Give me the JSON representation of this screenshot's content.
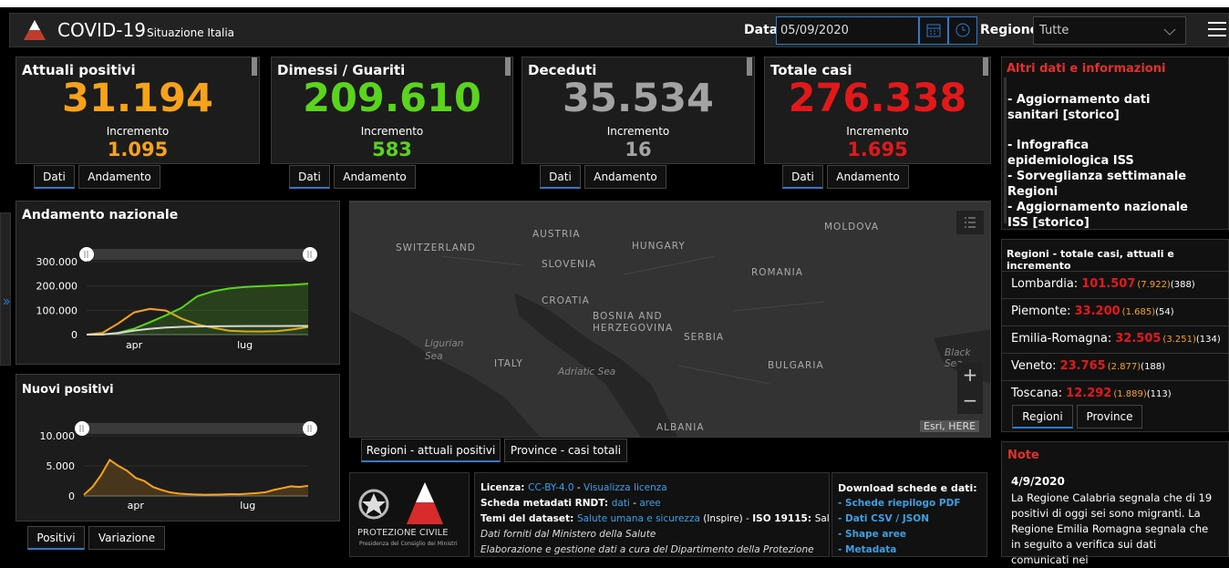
{
  "header": {
    "title": "COVID-19",
    "subtitle": "Situazione Italia",
    "date_label": "Data",
    "date_value": "05/09/2020",
    "region_label": "Regione",
    "region_value": "Tutte"
  },
  "cards": [
    {
      "title": "Attuali positivi",
      "value": "31.194",
      "increment_label": "Incremento",
      "increment": "1.095",
      "color": "#f7a21b",
      "tabs": [
        "Dati",
        "Andamento"
      ]
    },
    {
      "title": "Dimessi / Guariti",
      "value": "209.610",
      "increment_label": "Incremento",
      "increment": "583",
      "color": "#5bd41e",
      "tabs": [
        "Dati",
        "Andamento"
      ]
    },
    {
      "title": "Deceduti",
      "value": "35.534",
      "increment_label": "Incremento",
      "increment": "16",
      "color": "#a3a3a3",
      "tabs": [
        "Dati",
        "Andamento"
      ]
    },
    {
      "title": "Totale casi",
      "value": "276.338",
      "increment_label": "Incremento",
      "increment": "1.695",
      "color": "#e3181b",
      "tabs": [
        "Dati",
        "Andamento"
      ]
    }
  ],
  "links": {
    "title": "Altri dati e informazioni",
    "items": [
      "- Aggiornamento dati sanitari [storico]",
      "- Infografica epidemiologica ISS",
      "- Sorveglianza settimanale Regioni",
      "- Aggiornamento nazionale ISS [storico]"
    ]
  },
  "regions": {
    "title": "Regioni - totale casi, attuali e incremento",
    "rows": [
      {
        "name": "Lombardia:",
        "total": "101.507",
        "current": "(7.922)",
        "increment": "(388)"
      },
      {
        "name": "Piemonte:",
        "total": "33.200",
        "current": "(1.685)",
        "increment": "(54)"
      },
      {
        "name": "Emilia-Romagna:",
        "total": "32.505",
        "current": "(3.251)",
        "increment": "(134)"
      },
      {
        "name": "Veneto:",
        "total": "23.765",
        "current": "(2.877)",
        "increment": "(188)"
      },
      {
        "name": "Toscana:",
        "total": "12.292",
        "current": "(1.889)",
        "increment": "(113)"
      }
    ],
    "tabs": [
      "Regioni",
      "Province"
    ]
  },
  "note": {
    "title": "Note",
    "date": "4/9/2020",
    "text": "La Regione Calabria segnala che di 19 positivi di oggi sei sono migranti. La Regione Emilia Romagna segnala che in seguito a verifica sui dati comunicati nei"
  },
  "map": {
    "labels": [
      "SWITZERLAND",
      "AUSTRIA",
      "HUNGARY",
      "MOLDOVA",
      "SLOVENIA",
      "CROATIA",
      "ROMANIA",
      "BOSNIA AND",
      "HERZEGOVINA",
      "SERBIA",
      "Ligurian",
      "Sea",
      "ITALY",
      "Adriatic Sea",
      "BULGARIA",
      "Black Sea",
      "ALBANIA"
    ],
    "attribution": "Esri, HERE",
    "zoom": [
      "+",
      "−"
    ],
    "tabs": [
      "Regioni - attuali positivi",
      "Province - casi totali"
    ]
  },
  "chart_tabs": [
    "Positivi",
    "Variazione"
  ],
  "footer": {
    "logo": [
      "PROTEZIONE CIVILE",
      "Presidenza del Consiglio dei Ministri"
    ],
    "info": [
      [
        {
          "text": "Licenza: ",
          "kind": "bold"
        },
        {
          "text": "CC-BY-4.0",
          "kind": "link"
        },
        {
          "text": " - ",
          "kind": "plain"
        },
        {
          "text": "Visualizza licenza",
          "kind": "link"
        }
      ],
      [
        {
          "text": "Scheda metadati RNDT: ",
          "kind": "bold"
        },
        {
          "text": "dati",
          "kind": "link"
        },
        {
          "text": " - ",
          "kind": "plain"
        },
        {
          "text": "aree",
          "kind": "link"
        }
      ],
      [
        {
          "text": "Temi del dataset: ",
          "kind": "bold"
        },
        {
          "text": "Salute umana e sicurezza",
          "kind": "link"
        },
        {
          "text": " (Inspire) - ",
          "kind": "plain"
        },
        {
          "text": "ISO 19115: ",
          "kind": "bold"
        },
        {
          "text": "Salute",
          "kind": "plain"
        }
      ],
      [
        {
          "text": "Dati forniti dal Ministero della Salute",
          "kind": "italic"
        }
      ],
      [
        {
          "text": "Elaborazione e gestione dati a cura del Dipartimento della Protezione",
          "kind": "italic"
        }
      ]
    ],
    "download_title": "Download schede e dati:",
    "downloads": [
      "- Schede riepilogo PDF",
      "- Dati CSV / JSON",
      "- Shape aree",
      "- Metadata"
    ]
  },
  "chart_data": [
    {
      "type": "line",
      "title": "Andamento nazionale",
      "categories": [
        null,
        null,
        null,
        "apr",
        null,
        null,
        null,
        null,
        null,
        null,
        "lug",
        null,
        null,
        null,
        null
      ],
      "series": [
        {
          "name": "Attuali positivi",
          "color": "#f7a21b",
          "area": false,
          "values": [
            0,
            7000,
            46000,
            91000,
            106000,
            99000,
            66000,
            42000,
            28000,
            16000,
            13000,
            12500,
            14000,
            21000,
            31194
          ]
        },
        {
          "name": "Dimessi / Guariti",
          "color": "#5bd41e",
          "area": true,
          "values": [
            0,
            600,
            7400,
            24000,
            51000,
            79000,
            110000,
            158000,
            178000,
            190000,
            196000,
            199000,
            202000,
            205000,
            209610
          ]
        },
        {
          "name": "Deceduti",
          "color": "#d8d8d8",
          "area": false,
          "values": [
            0,
            460,
            6000,
            16500,
            24000,
            29000,
            32000,
            33500,
            34400,
            34700,
            34950,
            35100,
            35200,
            35450,
            35534
          ]
        }
      ],
      "ylim": [
        0,
        300000
      ],
      "yticks": [
        0,
        {
          "value": 100000,
          "label": "100.000"
        },
        {
          "value": 200000,
          "label": "200.000"
        },
        {
          "value": 300000,
          "label": "300.000"
        }
      ]
    },
    {
      "type": "area",
      "title": "Nuovi positivi",
      "categories": [
        null,
        null,
        null,
        null,
        null,
        null,
        "apr",
        null,
        null,
        null,
        null,
        null,
        null,
        null,
        null,
        null,
        null,
        null,
        null,
        "lug",
        null,
        null,
        null,
        null,
        null,
        null,
        null
      ],
      "series": [
        {
          "name": "Nuovi positivi",
          "color": "#f7a21b",
          "area": true,
          "values": [
            200,
            1500,
            3500,
            6000,
            5000,
            4200,
            3000,
            2500,
            1500,
            1000,
            600,
            400,
            300,
            250,
            200,
            230,
            250,
            300,
            280,
            380,
            480,
            600,
            1000,
            1300,
            1600,
            1500,
            1695
          ]
        }
      ],
      "ylim": [
        0,
        10000
      ],
      "yticks": [
        0,
        {
          "value": 5000,
          "label": "5.000"
        },
        {
          "value": 10000,
          "label": "10.000"
        }
      ]
    }
  ]
}
